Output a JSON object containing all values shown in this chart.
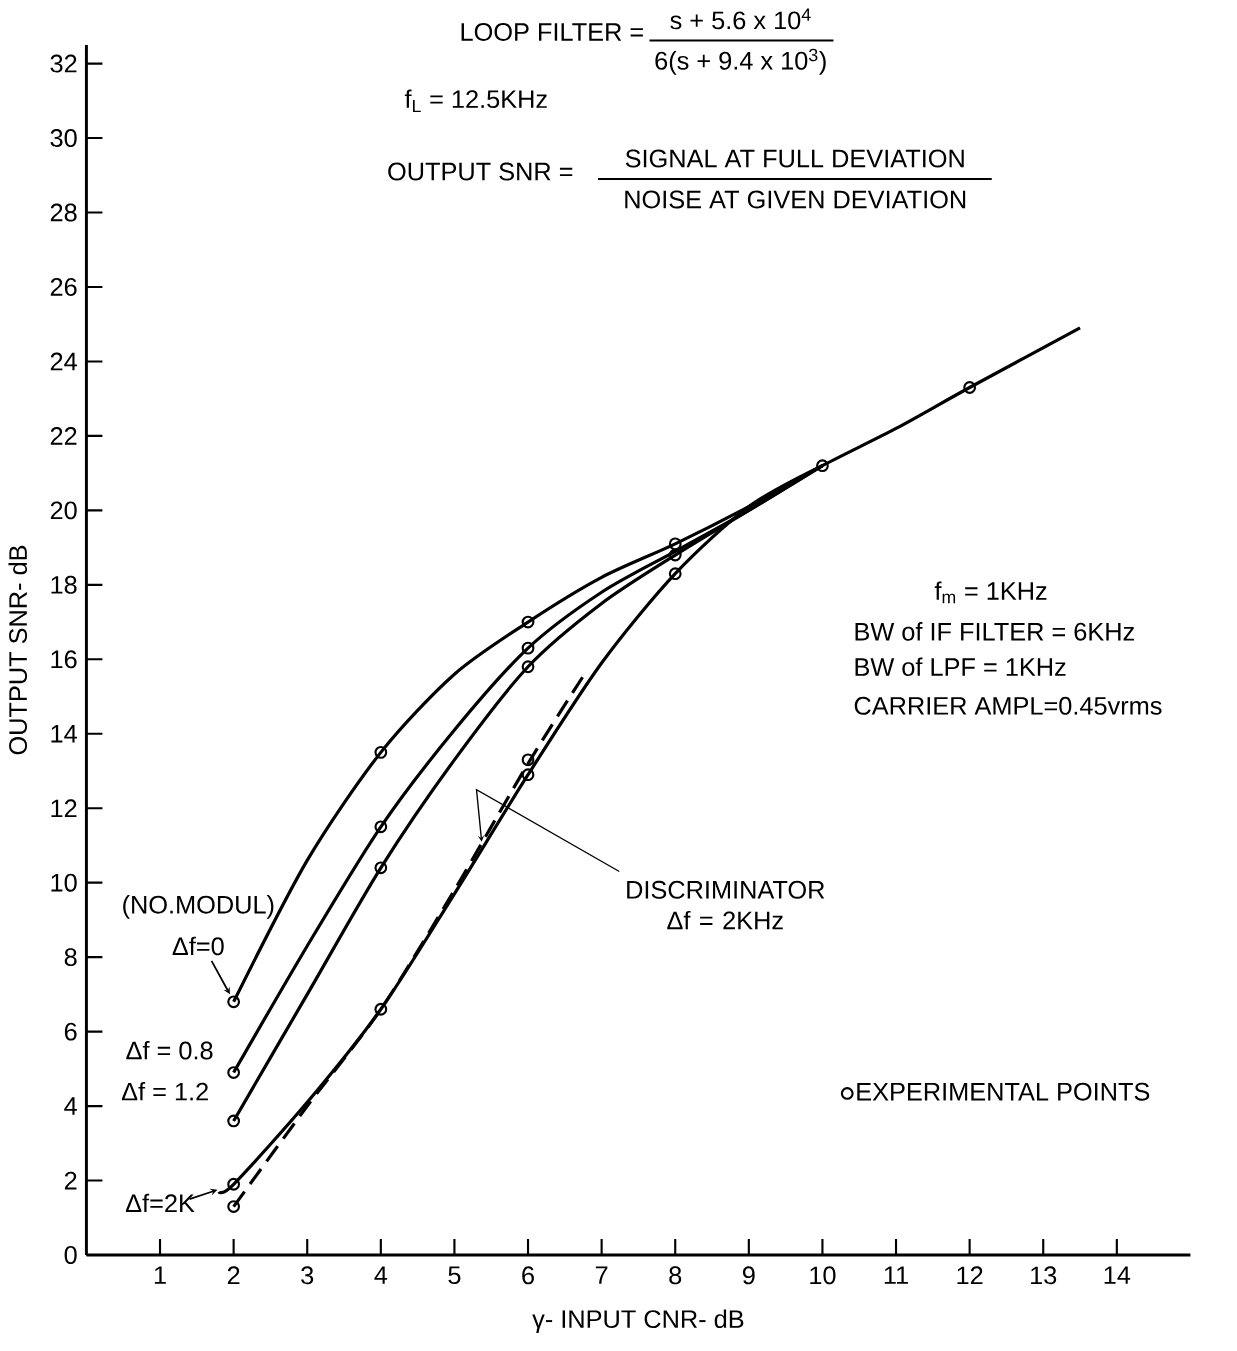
{
  "chart_data": {
    "type": "line",
    "xlabel": "γ- INPUT CNR- dB",
    "ylabel": "OUTPUT SNR- dB",
    "xlim": [
      0,
      15
    ],
    "ylim": [
      0,
      32.5
    ],
    "xticks": [
      1,
      2,
      3,
      4,
      5,
      6,
      7,
      8,
      9,
      10,
      11,
      12,
      13,
      14
    ],
    "yticks": [
      0,
      2,
      4,
      6,
      8,
      10,
      12,
      14,
      16,
      18,
      20,
      22,
      24,
      26,
      28,
      30,
      32
    ],
    "legend": "bottom right",
    "series": [
      {
        "name": "Δf=0",
        "color": "#000000",
        "x": [
          2,
          3,
          4,
          5,
          6,
          7,
          8,
          9,
          10,
          11,
          12,
          13.5
        ],
        "values": [
          6.8,
          10.6,
          13.5,
          15.6,
          17,
          18.2,
          19.1,
          20.1,
          21.2,
          22.2,
          23.3,
          24.9
        ]
      },
      {
        "name": "Δf = 0.8",
        "color": "#000000",
        "x": [
          2,
          3,
          4,
          5,
          6,
          7,
          8,
          9,
          10
        ],
        "values": [
          4.9,
          8.3,
          11.5,
          14.1,
          16.3,
          17.8,
          18.9,
          20.0,
          21.2
        ]
      },
      {
        "name": "Δf = 1.2",
        "color": "#000000",
        "x": [
          2,
          3,
          4,
          5,
          6,
          7,
          8,
          9,
          10
        ],
        "values": [
          3.6,
          7.0,
          10.4,
          13.3,
          15.8,
          17.5,
          18.8,
          20.0,
          21.2
        ]
      },
      {
        "name": "Δf=2K",
        "color": "#000000",
        "x": [
          1.8,
          2,
          3,
          4,
          5,
          6,
          7,
          8,
          9,
          10
        ],
        "values": [
          1.7,
          1.9,
          4.1,
          6.6,
          9.7,
          12.9,
          15.9,
          18.3,
          20.1,
          21.2
        ]
      },
      {
        "name": "DISCRIMINATOR Δf = 2KHz",
        "color": "#000000",
        "line_style": "dashed",
        "x": [
          2,
          3,
          4,
          5,
          6,
          6.8
        ],
        "values": [
          1.3,
          4.0,
          6.6,
          9.8,
          13.2,
          15.7
        ]
      },
      {
        "name": "EXPERIMENTAL POINTS",
        "type": "scatter",
        "marker": "circle",
        "color": "#000000",
        "x": [
          2,
          2,
          2,
          2,
          2,
          4,
          4,
          4,
          4,
          6,
          6,
          6,
          6,
          6,
          8,
          8,
          8,
          10,
          12
        ],
        "values": [
          6.8,
          4.9,
          3.6,
          1.9,
          1.3,
          13.5,
          11.5,
          10.4,
          6.6,
          17,
          16.3,
          15.8,
          13.3,
          12.9,
          19.1,
          18.8,
          18.3,
          21.2,
          23.3
        ]
      }
    ],
    "annotations": [
      "LOOP FILTER =",
      "s + 5.6 x 10$^{4}$",
      "6(s + 9.4 x 10$^{3}$)",
      "f$_{L}$ = 12.5KHz",
      "OUTPUT SNR =",
      "SIGNAL AT FULL DEVIATION",
      "NOISE AT GIVEN DEVIATION",
      "f$_{m}$ = 1KHz",
      "BW of IF FILTER = 6KHz",
      "BW of LPF = 1KHz",
      "CARRIER AMPL=0.45vrms",
      "(NO.MODUL)"
    ]
  }
}
